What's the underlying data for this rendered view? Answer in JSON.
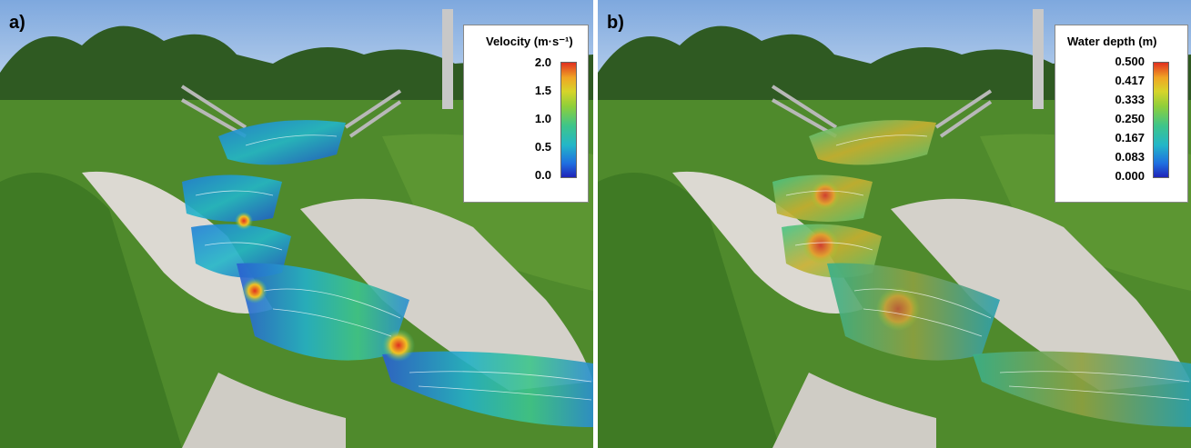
{
  "panels": [
    {
      "label": "a)",
      "legend": {
        "title": "Velocity (m·s⁻¹)",
        "ticks": [
          "2.0",
          "1.5",
          "1.0",
          "0.5",
          "0.0"
        ]
      }
    },
    {
      "label": "b)",
      "legend": {
        "title": "Water depth (m)",
        "ticks": [
          "0.500",
          "0.417",
          "0.333",
          "0.250",
          "0.167",
          "0.083",
          "0.000"
        ]
      }
    }
  ],
  "colors": {
    "sky": "#8fb6e6",
    "grass": "#4f8a2c",
    "stone": "#d9d6d0",
    "colorbar_low": "#1f24b8",
    "colorbar_high": "#e03020"
  }
}
